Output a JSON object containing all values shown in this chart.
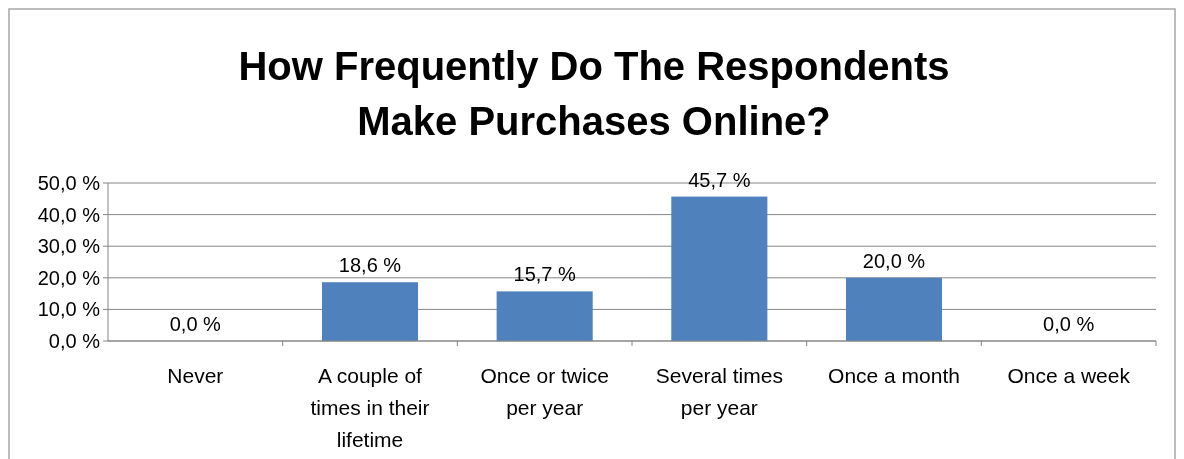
{
  "chart_data": {
    "type": "bar",
    "title": "How Frequently Do The Respondents Make Purchases Online?",
    "categories": [
      "Never",
      "A couple of times in their lifetime",
      "Once or twice per year",
      "Several times per year",
      "Once a month",
      "Once a week"
    ],
    "values": [
      0,
      18.6,
      15.7,
      45.7,
      20.0,
      0
    ],
    "value_labels": [
      "0,0 %",
      "18,6 %",
      "15,7 %",
      "45,7 %",
      "20,0 %",
      "0,0 %"
    ],
    "color": "#4f81bd",
    "ylim": [
      0,
      50
    ],
    "yticks": [
      {
        "value": 0,
        "label": "0,0 %"
      },
      {
        "value": 10,
        "label": "10,0 %"
      },
      {
        "value": 20,
        "label": "20,0 %"
      },
      {
        "value": 30,
        "label": "30,0 %"
      },
      {
        "value": 40,
        "label": "40,0 %"
      },
      {
        "value": 50,
        "label": "50,0 %"
      }
    ],
    "grid": "y"
  }
}
